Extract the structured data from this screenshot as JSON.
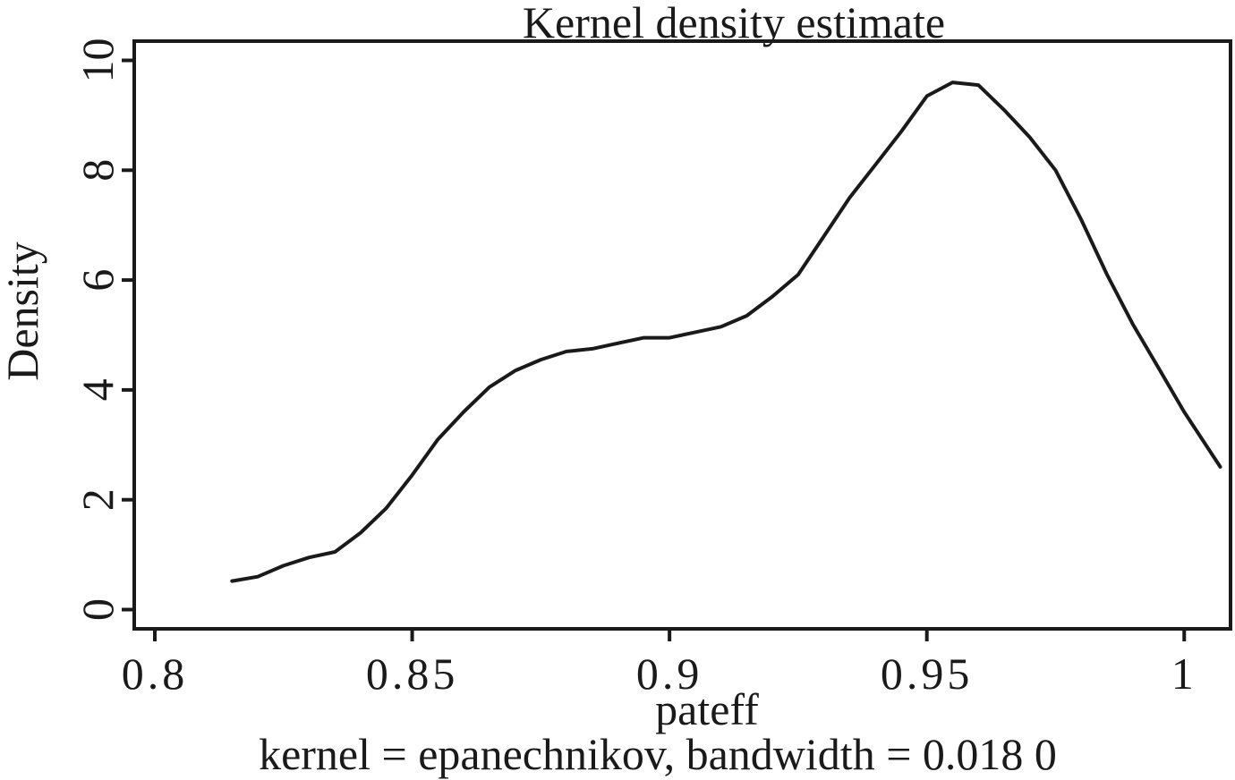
{
  "chart_data": {
    "type": "line",
    "title": "Kernel density estimate",
    "xlabel": "pateff",
    "ylabel": "Density",
    "note": "kernel = epanechnikov, bandwidth = 0.018 0",
    "xlim": [
      0.796,
      1.009
    ],
    "ylim": [
      -0.35,
      10.35
    ],
    "x_ticks": [
      0.8,
      0.85,
      0.9,
      0.95,
      1.0
    ],
    "x_tick_labels": [
      "0.8",
      "0.85",
      "0.9",
      "0.95",
      "1"
    ],
    "y_ticks": [
      0,
      2,
      4,
      6,
      8,
      10
    ],
    "y_tick_labels": [
      "0",
      "2",
      "4",
      "6",
      "8",
      "10"
    ],
    "grid": false,
    "legend": "none",
    "line_color": "#1a1a1a",
    "series": [
      {
        "x": [
          0.815,
          0.82,
          0.825,
          0.83,
          0.835,
          0.84,
          0.845,
          0.85,
          0.855,
          0.86,
          0.865,
          0.87,
          0.875,
          0.88,
          0.885,
          0.89,
          0.895,
          0.9,
          0.905,
          0.91,
          0.915,
          0.92,
          0.925,
          0.93,
          0.935,
          0.94,
          0.945,
          0.95,
          0.955,
          0.96,
          0.965,
          0.97,
          0.975,
          0.98,
          0.985,
          0.99,
          0.995,
          1.0,
          1.007
        ],
        "y": [
          0.52,
          0.6,
          0.8,
          0.95,
          1.05,
          1.4,
          1.85,
          2.45,
          3.1,
          3.6,
          4.05,
          4.35,
          4.55,
          4.7,
          4.75,
          4.85,
          4.95,
          4.95,
          5.05,
          5.15,
          5.35,
          5.7,
          6.1,
          6.8,
          7.5,
          8.1,
          8.7,
          9.35,
          9.6,
          9.55,
          9.1,
          8.6,
          8.0,
          7.1,
          6.1,
          5.2,
          4.4,
          3.6,
          2.6
        ]
      }
    ]
  }
}
